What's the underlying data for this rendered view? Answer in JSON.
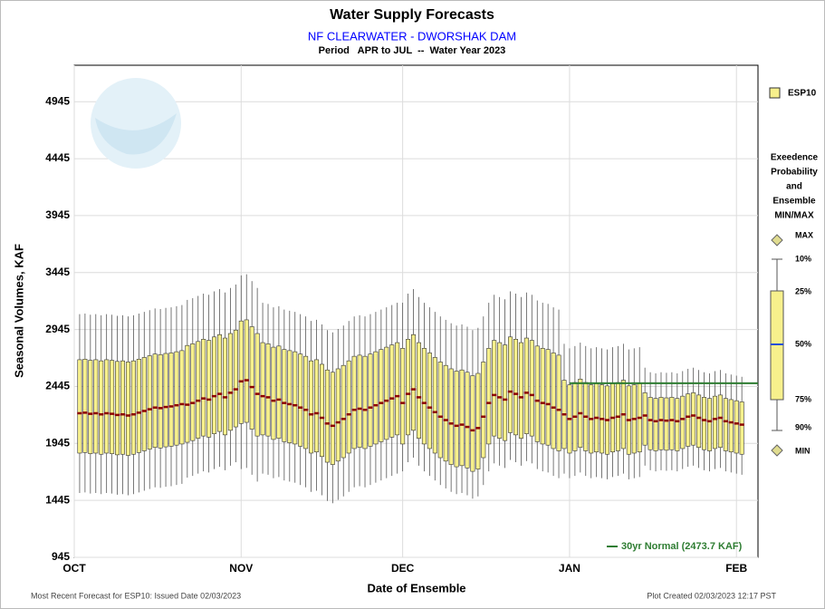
{
  "chart_data": {
    "type": "box",
    "title": "Water Supply Forecasts",
    "subtitle": "NF CLEARWATER - DWORSHAK DAM",
    "period": "Period   APR to JUL  --  Water Year 2023",
    "x_label": "Date of Ensemble",
    "y_label": "Seasonal Volumes, KAF",
    "xlim": [
      0,
      127
    ],
    "xticks": [
      {
        "value": 0,
        "label": "OCT"
      },
      {
        "value": 31,
        "label": "NOV"
      },
      {
        "value": 61,
        "label": "DEC"
      },
      {
        "value": 92,
        "label": "JAN"
      },
      {
        "value": 123,
        "label": "FEB"
      }
    ],
    "ylim": [
      945,
      5265
    ],
    "yticks": [
      945,
      1445,
      1945,
      2445,
      2945,
      3445,
      3945,
      4445,
      4945
    ],
    "grid": true,
    "x": [
      1,
      2,
      3,
      4,
      5,
      6,
      7,
      8,
      9,
      10,
      11,
      12,
      13,
      14,
      15,
      16,
      17,
      18,
      19,
      20,
      21,
      22,
      23,
      24,
      25,
      26,
      27,
      28,
      29,
      30,
      31,
      32,
      33,
      34,
      35,
      36,
      37,
      38,
      39,
      40,
      41,
      42,
      43,
      44,
      45,
      46,
      47,
      48,
      49,
      50,
      51,
      52,
      53,
      54,
      55,
      56,
      57,
      58,
      59,
      60,
      61,
      62,
      63,
      64,
      65,
      66,
      67,
      68,
      69,
      70,
      71,
      72,
      73,
      74,
      75,
      76,
      77,
      78,
      79,
      80,
      81,
      82,
      83,
      84,
      85,
      86,
      87,
      88,
      89,
      90,
      91,
      92,
      93,
      94,
      95,
      96,
      97,
      98,
      99,
      100,
      101,
      102,
      103,
      104,
      105,
      106,
      107,
      108,
      109,
      110,
      111,
      112,
      113,
      114,
      115,
      116,
      117,
      118,
      119,
      120,
      121,
      122,
      123,
      124
    ],
    "series": [
      {
        "name": "ESP10",
        "color": "#f7f08c",
        "median_color": "#8b0000",
        "p10": [
          1510,
          1515,
          1505,
          1510,
          1500,
          1510,
          1505,
          1495,
          1500,
          1490,
          1500,
          1515,
          1530,
          1545,
          1560,
          1555,
          1565,
          1570,
          1580,
          1590,
          1645,
          1660,
          1680,
          1700,
          1690,
          1720,
          1740,
          1710,
          1750,
          1780,
          1720,
          1730,
          1670,
          1610,
          1680,
          1670,
          1640,
          1650,
          1620,
          1610,
          1600,
          1580,
          1560,
          1520,
          1530,
          1490,
          1440,
          1420,
          1450,
          1480,
          1520,
          1560,
          1570,
          1560,
          1580,
          1600,
          1620,
          1640,
          1660,
          1680,
          1700,
          1780,
          1820,
          1750,
          1700,
          1660,
          1620,
          1580,
          1550,
          1520,
          1500,
          1510,
          1490,
          1460,
          1480,
          1580,
          1700,
          1770,
          1750,
          1730,
          1800,
          1780,
          1750,
          1790,
          1770,
          1720,
          1700,
          1690,
          1660,
          1640,
          1680,
          1640,
          1660,
          1690,
          1660,
          1640,
          1650,
          1640,
          1630,
          1650,
          1660,
          1680,
          1630,
          1640,
          1650,
          1750,
          1710,
          1700,
          1710,
          1705,
          1710,
          1700,
          1720,
          1740,
          1750,
          1730,
          1710,
          1700,
          1720,
          1730,
          1700,
          1690,
          1680,
          1670
        ],
        "p25": [
          1860,
          1865,
          1855,
          1860,
          1850,
          1860,
          1855,
          1845,
          1850,
          1840,
          1850,
          1865,
          1880,
          1895,
          1910,
          1905,
          1915,
          1920,
          1930,
          1940,
          1955,
          1970,
          1990,
          2010,
          2000,
          2030,
          2050,
          2020,
          2060,
          2090,
          2120,
          2130,
          2070,
          2010,
          2020,
          2010,
          1980,
          1990,
          1960,
          1950,
          1940,
          1920,
          1900,
          1860,
          1870,
          1830,
          1780,
          1760,
          1790,
          1820,
          1860,
          1900,
          1910,
          1900,
          1920,
          1940,
          1960,
          1980,
          2000,
          2020,
          1940,
          2020,
          2060,
          1990,
          1940,
          1900,
          1860,
          1820,
          1790,
          1760,
          1740,
          1750,
          1730,
          1700,
          1720,
          1820,
          1940,
          2010,
          1990,
          1970,
          2040,
          2020,
          1990,
          2030,
          2010,
          1960,
          1940,
          1930,
          1900,
          1880,
          1900,
          1860,
          1880,
          1910,
          1880,
          1860,
          1870,
          1860,
          1850,
          1870,
          1880,
          1900,
          1850,
          1860,
          1870,
          1930,
          1890,
          1880,
          1890,
          1885,
          1890,
          1880,
          1900,
          1920,
          1930,
          1910,
          1890,
          1880,
          1900,
          1910,
          1880,
          1870,
          1860,
          1850
        ],
        "p50": [
          2210,
          2215,
          2205,
          2210,
          2200,
          2210,
          2205,
          2195,
          2200,
          2190,
          2200,
          2215,
          2230,
          2245,
          2260,
          2255,
          2265,
          2270,
          2280,
          2290,
          2285,
          2300,
          2320,
          2340,
          2330,
          2360,
          2380,
          2350,
          2390,
          2420,
          2490,
          2500,
          2440,
          2380,
          2360,
          2350,
          2320,
          2330,
          2300,
          2290,
          2280,
          2260,
          2240,
          2200,
          2210,
          2170,
          2120,
          2100,
          2130,
          2160,
          2200,
          2240,
          2250,
          2240,
          2260,
          2280,
          2300,
          2320,
          2340,
          2360,
          2300,
          2380,
          2420,
          2350,
          2300,
          2260,
          2220,
          2180,
          2150,
          2120,
          2100,
          2110,
          2090,
          2060,
          2080,
          2180,
          2300,
          2370,
          2350,
          2330,
          2400,
          2380,
          2350,
          2390,
          2370,
          2320,
          2300,
          2290,
          2260,
          2240,
          2200,
          2160,
          2180,
          2210,
          2180,
          2160,
          2170,
          2160,
          2150,
          2170,
          2180,
          2200,
          2150,
          2160,
          2170,
          2190,
          2150,
          2140,
          2150,
          2145,
          2150,
          2140,
          2160,
          2180,
          2190,
          2170,
          2150,
          2140,
          2160,
          2170,
          2140,
          2130,
          2120,
          2110
        ],
        "p75": [
          2680,
          2685,
          2675,
          2680,
          2670,
          2680,
          2675,
          2665,
          2670,
          2660,
          2670,
          2685,
          2700,
          2715,
          2730,
          2725,
          2735,
          2740,
          2750,
          2760,
          2805,
          2820,
          2840,
          2860,
          2850,
          2880,
          2900,
          2870,
          2910,
          2940,
          3020,
          3030,
          2970,
          2910,
          2830,
          2820,
          2790,
          2800,
          2770,
          2760,
          2750,
          2730,
          2710,
          2670,
          2680,
          2640,
          2590,
          2570,
          2600,
          2630,
          2670,
          2710,
          2720,
          2710,
          2730,
          2750,
          2770,
          2790,
          2810,
          2830,
          2780,
          2860,
          2900,
          2830,
          2780,
          2740,
          2700,
          2660,
          2630,
          2600,
          2580,
          2590,
          2570,
          2540,
          2560,
          2660,
          2780,
          2850,
          2830,
          2810,
          2880,
          2860,
          2830,
          2870,
          2850,
          2800,
          2780,
          2770,
          2740,
          2720,
          2500,
          2460,
          2480,
          2510,
          2480,
          2460,
          2470,
          2460,
          2450,
          2470,
          2480,
          2500,
          2450,
          2460,
          2470,
          2390,
          2350,
          2340,
          2350,
          2345,
          2350,
          2340,
          2360,
          2380,
          2390,
          2370,
          2350,
          2340,
          2360,
          2370,
          2340,
          2330,
          2320,
          2310
        ],
        "p90": [
          3080,
          3085,
          3075,
          3080,
          3070,
          3080,
          3075,
          3065,
          3070,
          3060,
          3070,
          3085,
          3100,
          3115,
          3130,
          3125,
          3135,
          3140,
          3150,
          3160,
          3205,
          3220,
          3240,
          3260,
          3250,
          3280,
          3300,
          3270,
          3310,
          3340,
          3420,
          3430,
          3370,
          3310,
          3180,
          3170,
          3140,
          3150,
          3120,
          3110,
          3100,
          3080,
          3060,
          3020,
          3030,
          2990,
          2940,
          2920,
          2950,
          2980,
          3020,
          3060,
          3070,
          3060,
          3080,
          3100,
          3120,
          3140,
          3160,
          3180,
          3180,
          3260,
          3300,
          3230,
          3180,
          3140,
          3100,
          3060,
          3030,
          3000,
          2980,
          2990,
          2970,
          2940,
          2960,
          3060,
          3180,
          3250,
          3230,
          3210,
          3280,
          3260,
          3230,
          3270,
          3250,
          3200,
          3180,
          3170,
          3140,
          3120,
          2820,
          2780,
          2800,
          2830,
          2800,
          2780,
          2790,
          2780,
          2770,
          2790,
          2800,
          2820,
          2770,
          2780,
          2790,
          2610,
          2570,
          2560,
          2570,
          2565,
          2570,
          2560,
          2580,
          2600,
          2610,
          2590,
          2570,
          2560,
          2580,
          2590,
          2560,
          2550,
          2540,
          2530
        ]
      }
    ],
    "normal": {
      "label": "30yr Normal (2473.7 KAF)",
      "value": 2473.7,
      "x_start": 92,
      "color": "#2e7d32"
    },
    "legend": {
      "title": [
        "Exeedence",
        "Probability",
        "and",
        "Ensemble",
        "MIN/MAX"
      ],
      "max": "MAX",
      "p10": "10%",
      "p25": "25%",
      "p50": "50%",
      "p75": "75%",
      "p90": "90%",
      "min": "MIN"
    },
    "footer_left": "Most Recent Forecast for ESP10: Issued Date 02/03/2023",
    "footer_right": "Plot Created 02/03/2023 12:17 PST"
  }
}
